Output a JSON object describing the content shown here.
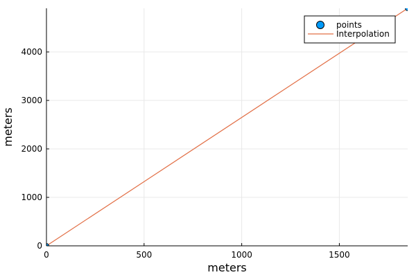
{
  "chart_data": {
    "type": "scatter",
    "title": "",
    "xlabel": "meters",
    "ylabel": "meters",
    "xlim": [
      0,
      1850
    ],
    "ylim": [
      0,
      4900
    ],
    "xticks": [
      0,
      500,
      1000,
      1500
    ],
    "yticks": [
      0,
      1000,
      2000,
      3000,
      4000
    ],
    "grid": true,
    "legend_position": "top-right",
    "series": [
      {
        "name": "points",
        "kind": "scatter",
        "color": "#009af9",
        "x": [
          0,
          1850
        ],
        "y": [
          0,
          4900
        ]
      },
      {
        "name": "Interpolation",
        "kind": "line",
        "color": "#e26f46",
        "x": [
          0,
          1850
        ],
        "y": [
          0,
          4900
        ]
      }
    ]
  }
}
